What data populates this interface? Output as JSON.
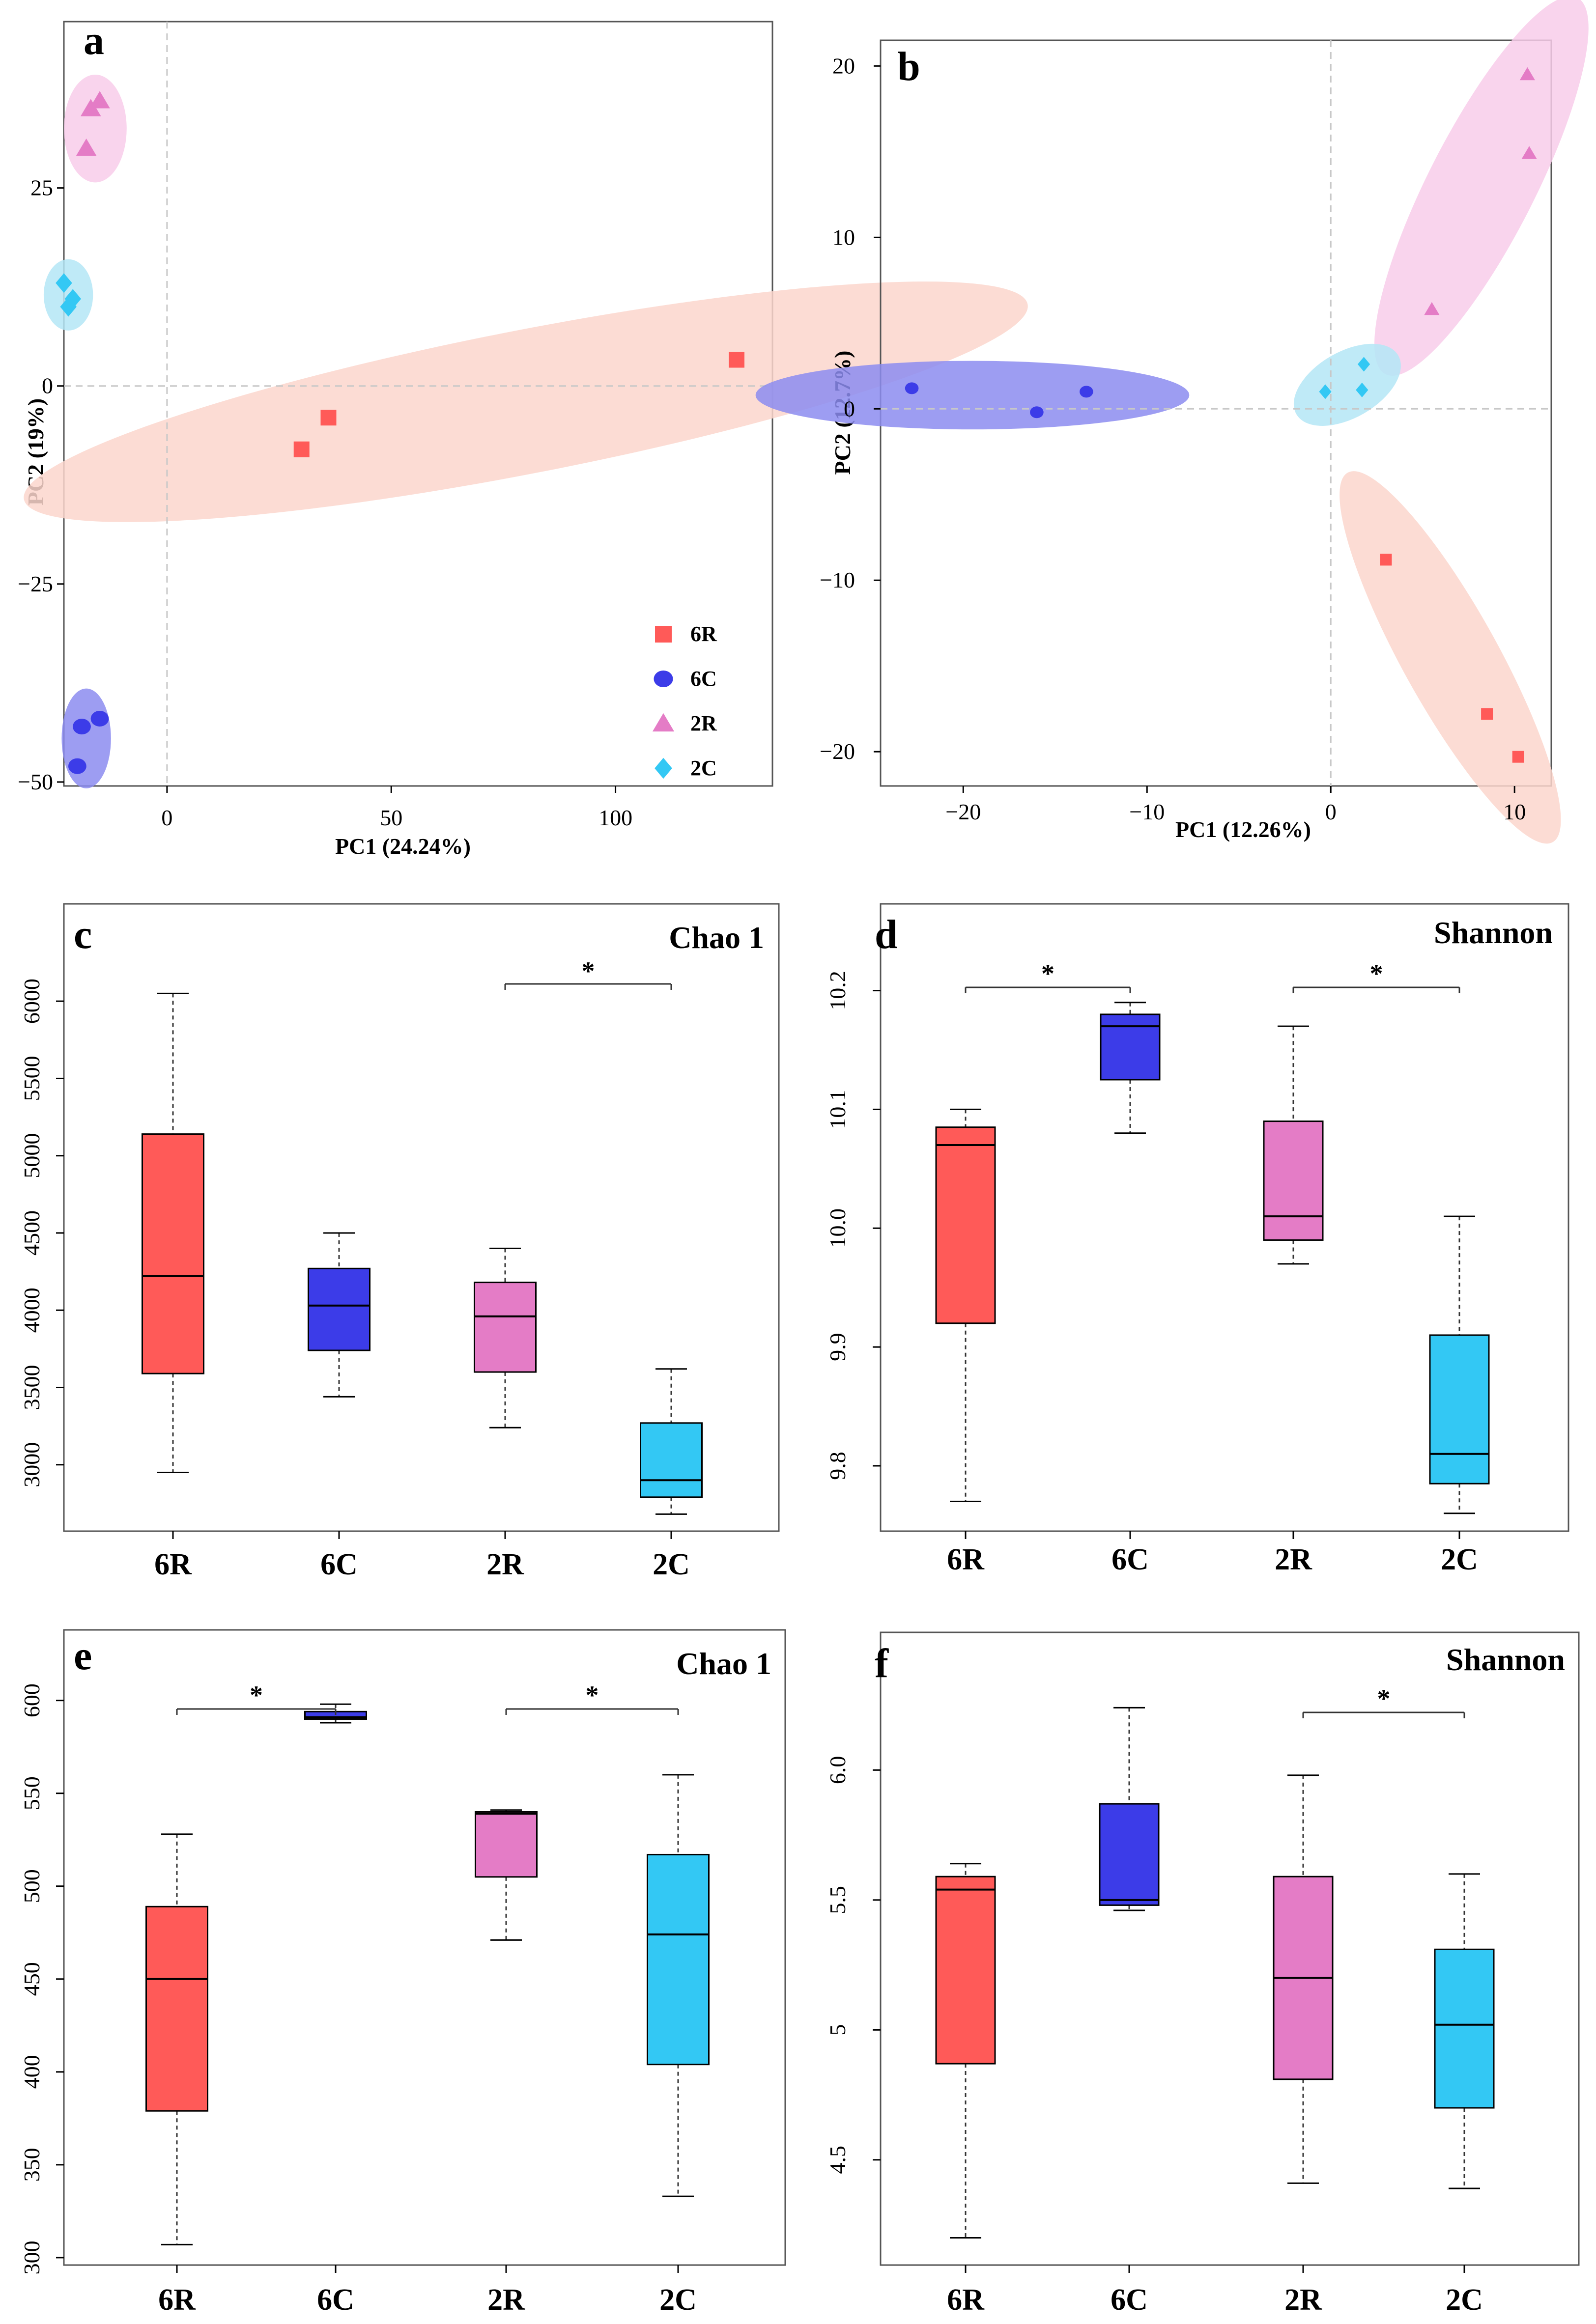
{
  "colors": {
    "6R": "#ff5a58",
    "6C": "#3c3ce8",
    "2R": "#e47cc6",
    "2C": "#33c8f4",
    "ellipse_6R": "#fcd6cc",
    "ellipse_6C": "#8c8cf0",
    "ellipse_2R": "#f8cdea",
    "ellipse_2C": "#b4e6f6"
  },
  "chart_data": [
    {
      "id": "a",
      "type": "scatter",
      "panel_label": "a",
      "xlabel": "PC1 (24.24%)",
      "ylabel": "PC2 (19%)",
      "xlim": [
        -23,
        135
      ],
      "ylim": [
        -50.5,
        46
      ],
      "xticks": [
        "0",
        "50",
        "100"
      ],
      "yticks": [
        "25",
        "0",
        "−25",
        "−50"
      ],
      "legend": {
        "position": "bottom-right",
        "entries": [
          "6R",
          "6C",
          "2R",
          "2C"
        ]
      },
      "series": [
        {
          "name": "6R",
          "marker": "square",
          "x": [
            30,
            36,
            127
          ],
          "y": [
            -8,
            -4,
            3.3
          ],
          "ellipse": {
            "cx": 80,
            "cy": -2,
            "rx": 114,
            "ry": 16,
            "angle_deg": -11
          }
        },
        {
          "name": "6C",
          "marker": "circle",
          "x": [
            -19,
            -15,
            -20
          ],
          "y": [
            -43,
            -42,
            -48
          ],
          "ellipse": {
            "cx": -18,
            "cy": -44.5,
            "rx": 5.5,
            "ry": 6.3,
            "angle_deg": 0
          }
        },
        {
          "name": "2R",
          "marker": "triangle",
          "x": [
            -17,
            -15,
            -18
          ],
          "y": [
            35,
            36,
            30
          ],
          "ellipse": {
            "cx": -16,
            "cy": 32.5,
            "rx": 7,
            "ry": 6.8,
            "angle_deg": 0
          }
        },
        {
          "name": "2C",
          "marker": "diamond",
          "x": [
            -23,
            -21,
            -22
          ],
          "y": [
            13,
            11,
            10
          ],
          "ellipse": {
            "cx": -22,
            "cy": 11.5,
            "rx": 5.5,
            "ry": 4.5,
            "angle_deg": 0
          }
        }
      ]
    },
    {
      "id": "b",
      "type": "scatter",
      "panel_label": "b",
      "xlabel": "PC1  (12.26%)",
      "ylabel": "PC2 (12.7%)",
      "xlim": [
        -24.5,
        12
      ],
      "ylim": [
        -22,
        21.5
      ],
      "xticks": [
        "−20",
        "−10",
        "0",
        "10"
      ],
      "yticks": [
        "20",
        "10",
        "0",
        "−10",
        "−20"
      ],
      "series": [
        {
          "name": "6R",
          "marker": "square",
          "x": [
            3,
            8.5,
            10.2
          ],
          "y": [
            -8.8,
            -17.8,
            -20.3
          ],
          "ellipse": {
            "cx": 6.5,
            "cy": -14.5,
            "rx": 11.5,
            "ry": 2.6,
            "angle_deg": 61
          }
        },
        {
          "name": "6C",
          "marker": "circle",
          "x": [
            -22.8,
            -16,
            -13.3
          ],
          "y": [
            1.2,
            -0.2,
            1.0
          ],
          "ellipse": {
            "cx": -19.5,
            "cy": 0.8,
            "rx": 11.8,
            "ry": 2.0,
            "angle_deg": 0
          }
        },
        {
          "name": "2R",
          "marker": "triangle",
          "x": [
            5.5,
            10.7,
            10.8
          ],
          "y": [
            5.8,
            19.5,
            14.9
          ],
          "ellipse": {
            "cx": 8.2,
            "cy": 13,
            "rx": 11.5,
            "ry": 2.9,
            "angle_deg": -63
          }
        },
        {
          "name": "2C",
          "marker": "diamond",
          "x": [
            -0.3,
            1.7,
            1.8
          ],
          "y": [
            1.0,
            1.1,
            2.6
          ],
          "ellipse": {
            "cx": 0.9,
            "cy": 1.4,
            "rx": 3.2,
            "ry": 1.8,
            "angle_deg": -30
          }
        }
      ]
    },
    {
      "id": "c",
      "type": "box",
      "panel_label": "c",
      "title": "Chao 1",
      "categories": [
        "6R",
        "6C",
        "2R",
        "2C"
      ],
      "ylim": [
        2570,
        6630
      ],
      "yticks": [
        "3000",
        "3500",
        "4000",
        "4500",
        "5000",
        "5500",
        "6000"
      ],
      "boxes": [
        {
          "name": "6R",
          "min": 2950,
          "q1": 3590,
          "median": 4220,
          "q3": 5140,
          "max": 6050
        },
        {
          "name": "6C",
          "min": 3440,
          "q1": 3740,
          "median": 4030,
          "q3": 4270,
          "max": 4500
        },
        {
          "name": "2R",
          "min": 3240,
          "q1": 3600,
          "median": 3960,
          "q3": 4180,
          "max": 4400
        },
        {
          "name": "2C",
          "min": 2680,
          "q1": 2790,
          "median": 2900,
          "q3": 3270,
          "max": 3620
        }
      ],
      "significance": [
        {
          "from": "2R",
          "to": "2C",
          "label": "*"
        }
      ]
    },
    {
      "id": "d",
      "type": "box",
      "panel_label": "d",
      "title": "Shannon",
      "categories": [
        "6R",
        "6C",
        "2R",
        "2C"
      ],
      "ylim": [
        9.745,
        10.273
      ],
      "yticks": [
        "9.8",
        "9.9",
        "10.0",
        "10.1",
        "10.2"
      ],
      "boxes": [
        {
          "name": "6R",
          "min": 9.77,
          "q1": 9.92,
          "median": 10.07,
          "q3": 10.085,
          "max": 10.1
        },
        {
          "name": "6C",
          "min": 10.08,
          "q1": 10.125,
          "median": 10.17,
          "q3": 10.18,
          "max": 10.19
        },
        {
          "name": "2R",
          "min": 9.97,
          "q1": 9.99,
          "median": 10.01,
          "q3": 10.09,
          "max": 10.17
        },
        {
          "name": "2C",
          "min": 9.76,
          "q1": 9.785,
          "median": 9.81,
          "q3": 9.91,
          "max": 10.01
        }
      ],
      "significance": [
        {
          "from": "6R",
          "to": "6C",
          "label": "*"
        },
        {
          "from": "2R",
          "to": "2C",
          "label": "*"
        }
      ]
    },
    {
      "id": "e",
      "type": "box",
      "panel_label": "e",
      "title": "Chao 1",
      "categories": [
        "6R",
        "6C",
        "2R",
        "2C"
      ],
      "ylim": [
        296,
        638
      ],
      "yticks": [
        "300",
        "350",
        "400",
        "450",
        "500",
        "550",
        "600"
      ],
      "boxes": [
        {
          "name": "6R",
          "min": 307,
          "q1": 379,
          "median": 450,
          "q3": 489,
          "max": 528
        },
        {
          "name": "6C",
          "min": 588,
          "q1": 590,
          "median": 591,
          "q3": 594,
          "max": 598
        },
        {
          "name": "2R",
          "min": 471,
          "q1": 505,
          "median": 539,
          "q3": 540,
          "max": 541
        },
        {
          "name": "2C",
          "min": 333,
          "q1": 404,
          "median": 474,
          "q3": 517,
          "max": 560
        }
      ],
      "significance": [
        {
          "from": "6R",
          "to": "6C",
          "label": "*"
        },
        {
          "from": "2R",
          "to": "2C",
          "label": "*"
        }
      ]
    },
    {
      "id": "f",
      "type": "box",
      "panel_label": "f",
      "title": "Shannon",
      "categories": [
        "6R",
        "6C",
        "2R",
        "2C"
      ],
      "ylim": [
        4.095,
        6.53
      ],
      "yticks": [
        "4.5",
        "5",
        "5.5",
        "6.0"
      ],
      "boxes": [
        {
          "name": "6R",
          "min": 4.2,
          "q1": 4.87,
          "median": 5.54,
          "q3": 5.59,
          "max": 5.64
        },
        {
          "name": "6C",
          "min": 5.46,
          "q1": 5.48,
          "median": 5.5,
          "q3": 5.87,
          "max": 6.24
        },
        {
          "name": "2R",
          "min": 4.41,
          "q1": 4.81,
          "median": 5.2,
          "q3": 5.59,
          "max": 5.98
        },
        {
          "name": "2C",
          "min": 4.39,
          "q1": 4.7,
          "median": 5.02,
          "q3": 5.31,
          "max": 5.6
        }
      ],
      "significance": [
        {
          "from": "2R",
          "to": "2C",
          "label": "*"
        }
      ]
    }
  ]
}
